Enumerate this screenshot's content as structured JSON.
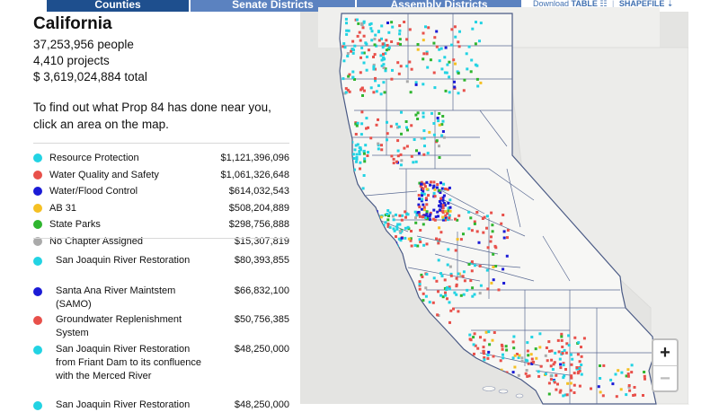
{
  "nav": {
    "tabs": [
      {
        "label": "Counties",
        "active": true
      },
      {
        "label": "Senate Districts",
        "active": false
      },
      {
        "label": "Assembly Districts",
        "active": false
      }
    ],
    "download_label": "Download",
    "table_label": "TABLE",
    "table_icon": "table-icon",
    "shapefile_label": "SHAPEFILE",
    "shapefile_icon": "download-icon"
  },
  "summary": {
    "title": "California",
    "population": "37,253,956 people",
    "projects": "4,410 projects",
    "total": "$ 3,619,024,884 total",
    "prompt": "To find out what Prop 84 has done near you, click an area on the map."
  },
  "legend": [
    {
      "label": "Resource Protection",
      "amount": "$1,121,396,096",
      "color": "#22d3e3"
    },
    {
      "label": "Water Quality and Safety",
      "amount": "$1,061,326,648",
      "color": "#e8504a"
    },
    {
      "label": "Water/Flood Control",
      "amount": "$614,032,543",
      "color": "#1b1bd6"
    },
    {
      "label": "AB 31",
      "amount": "$508,204,889",
      "color": "#f5c024"
    },
    {
      "label": "State Parks",
      "amount": "$298,756,888",
      "color": "#2fb52f"
    },
    {
      "label": "No Chapter Assigned",
      "amount": "$15,307,819",
      "color": "#aaaaaa"
    }
  ],
  "projects": [
    {
      "name": "San Joaquin River Restoration",
      "amount": "$80,393,855",
      "color": "#22d3e3"
    },
    {
      "name": "Santa Ana River Maintstem (SAMO)",
      "amount": "$66,832,100",
      "color": "#1b1bd6"
    },
    {
      "name": "Groundwater Replenishment System",
      "amount": "$50,756,385",
      "color": "#e8504a"
    },
    {
      "name": "San Joaquin River Restoration from Friant Dam to its confluence with the Merced River",
      "amount": "$48,250,000",
      "color": "#22d3e3"
    },
    {
      "name": "San Joaquin River Restoration",
      "amount": "$48,250,000",
      "color": "#22d3e3"
    }
  ],
  "map": {
    "land_color": "#f7f7f5",
    "water_color": "#e4e4e2",
    "border_color": "#4a5a85",
    "zoom_in": "+",
    "zoom_out": "−"
  }
}
